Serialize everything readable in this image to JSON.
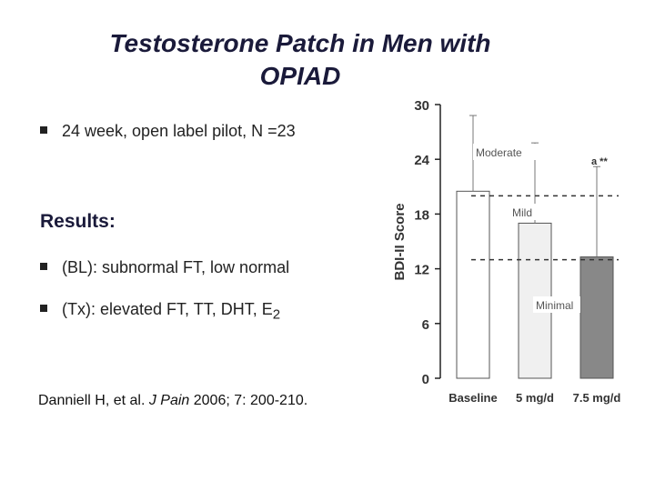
{
  "title": {
    "line1": "Testosterone Patch in Men with",
    "line2": "OPIAD"
  },
  "bullets": [
    {
      "text": "24 week, open label pilot, N =23"
    },
    {
      "text": "(BL): subnormal FT, low normal"
    },
    {
      "text_main": "(Tx): elevated FT, TT, DHT, E",
      "text_sub": "2"
    }
  ],
  "results_heading": "Results:",
  "citation": {
    "authors": "Danniell H, et al. ",
    "journal": "J Pain",
    "details": " 2006; 7: 200-210."
  },
  "chart_data": {
    "type": "bar",
    "categories": [
      "Baseline",
      "5 mg/d",
      "7.5 mg/d"
    ],
    "values": [
      20.5,
      17,
      13.3
    ],
    "error_upper": [
      28.8,
      25.8,
      23.2
    ],
    "bar_colors": [
      "#ffffff",
      "#f0f0f0",
      "#888888"
    ],
    "ylabel": "BDI-II Score",
    "ylim": [
      0,
      30
    ],
    "yticks": [
      "0",
      "6",
      "12",
      "18",
      "24",
      "30"
    ],
    "thresholds": [
      {
        "label": "Moderate",
        "value": 20
      },
      {
        "label": "Mild",
        "value": 13
      }
    ],
    "region_labels": [
      "Moderate",
      "Mild",
      "Minimal"
    ],
    "annotation": "a **"
  }
}
